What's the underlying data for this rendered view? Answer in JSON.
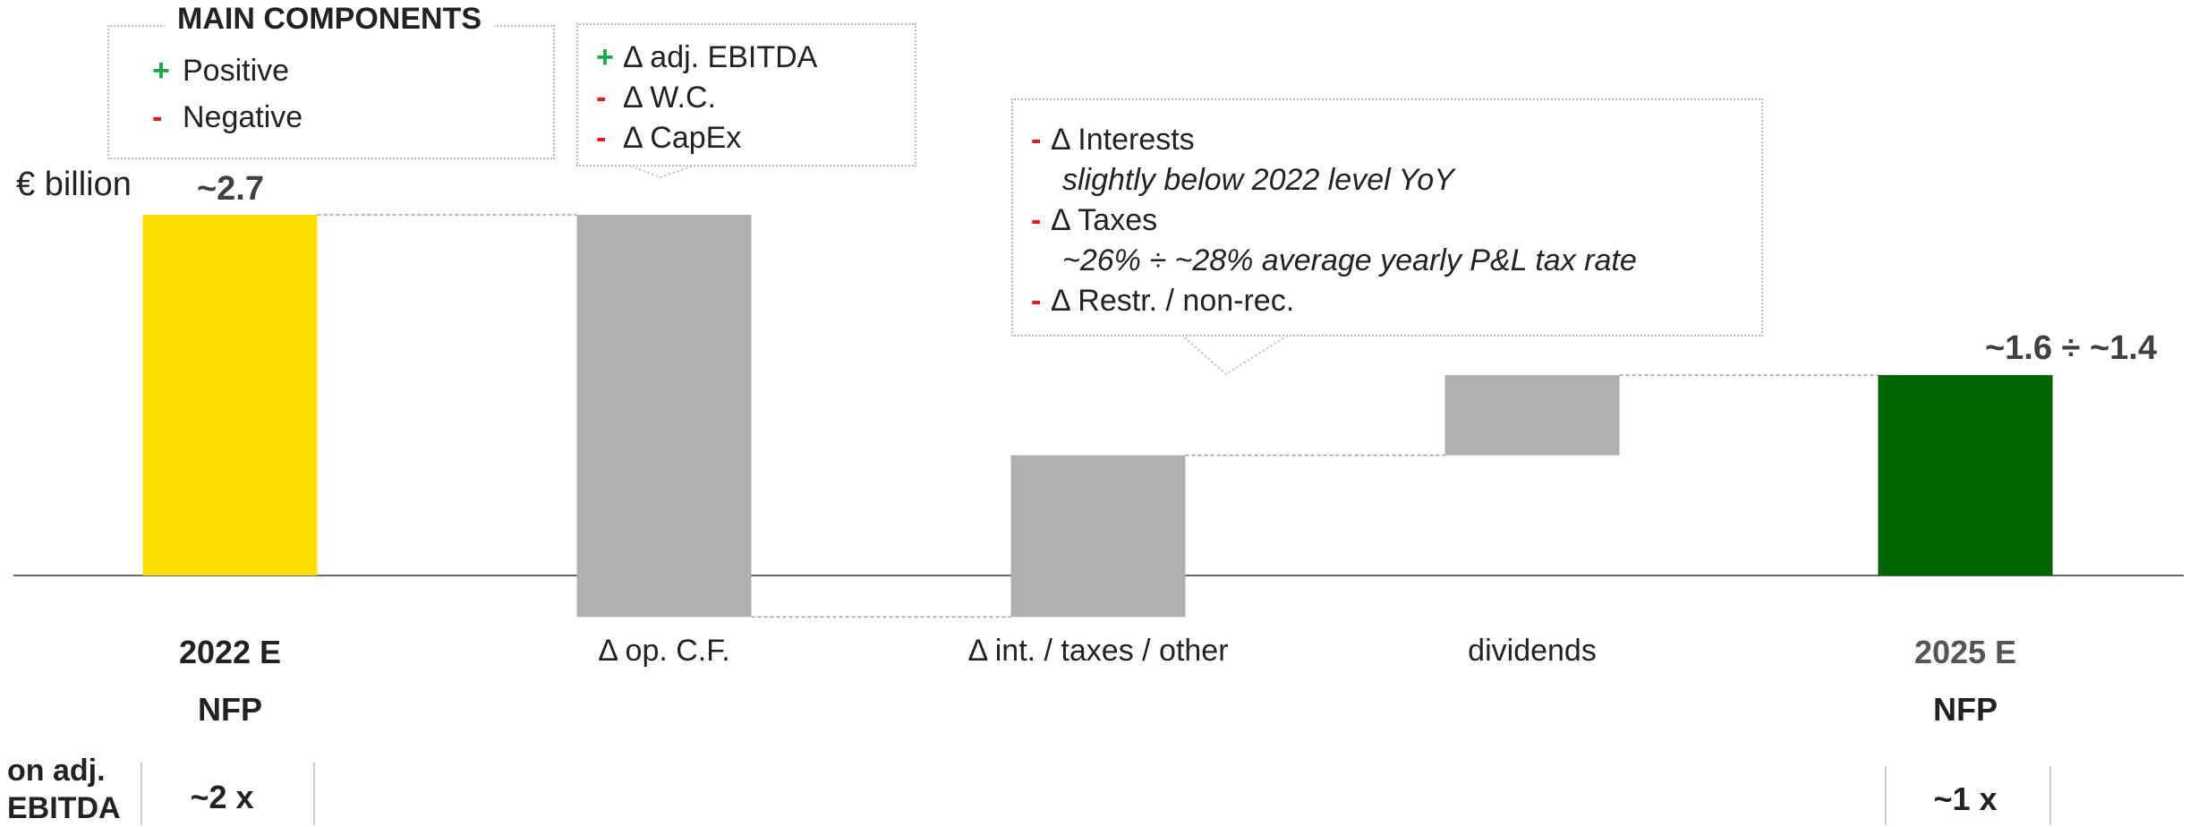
{
  "legend": {
    "title": "MAIN COMPONENTS",
    "items": [
      {
        "sign": "+",
        "label": "Positive",
        "color": "#1aa84a"
      },
      {
        "sign": "-",
        "label": "Negative",
        "color": "#e01b1b"
      }
    ]
  },
  "unit_label": "€ billion",
  "callouts": {
    "op_cf": [
      {
        "sign": "+",
        "sign_color": "#1aa84a",
        "text": "Δ adj. EBITDA"
      },
      {
        "sign": "-",
        "sign_color": "#e01b1b",
        "text": "Δ W.C."
      },
      {
        "sign": "-",
        "sign_color": "#e01b1b",
        "text": "Δ CapEx"
      }
    ],
    "int_taxes": [
      {
        "sign": "-",
        "sign_color": "#e01b1b",
        "text": "Δ Interests"
      },
      {
        "note": "slightly below 2022 level YoY"
      },
      {
        "sign": "-",
        "sign_color": "#e01b1b",
        "text": "Δ Taxes"
      },
      {
        "note": "~26% ÷ ~28% average yearly P&L tax rate"
      },
      {
        "sign": "-",
        "sign_color": "#e01b1b",
        "text": "Δ Restr. / non-rec."
      }
    ]
  },
  "chart_data": {
    "type": "bar",
    "subtype": "waterfall",
    "unit": "€ billion",
    "categories": [
      "2022 E",
      "Δ op. C.F.",
      "Δ int. / taxes / other",
      "dividends",
      "2025 E"
    ],
    "sublabels": [
      "NFP",
      "",
      "",
      "",
      "NFP"
    ],
    "bars": [
      {
        "category": "2022 E",
        "kind": "total",
        "start": 0,
        "end": 2.7,
        "color": "#ffdd00"
      },
      {
        "category": "Δ op. C.F.",
        "kind": "delta",
        "start": 2.7,
        "end": -0.31,
        "color": "#b0b0b0"
      },
      {
        "category": "Δ int. / taxes / other",
        "kind": "delta",
        "start": -0.31,
        "end": 0.9,
        "color": "#b0b0b0"
      },
      {
        "category": "dividends",
        "kind": "delta",
        "start": 0.9,
        "end": 1.5,
        "color": "#b0b0b0"
      },
      {
        "category": "2025 E",
        "kind": "total",
        "start": 0,
        "end": 1.5,
        "color": "#006400"
      }
    ],
    "data_labels": [
      "~2.7",
      "",
      "",
      "",
      "~1.6 ÷ ~1.4"
    ],
    "ylim": [
      -0.35,
      2.9
    ],
    "grid": false,
    "legend": "top-left"
  },
  "ratio_row": {
    "label": "on adj. EBITDA",
    "values": [
      "~2 x",
      "",
      "",
      "",
      "~1 x"
    ]
  }
}
